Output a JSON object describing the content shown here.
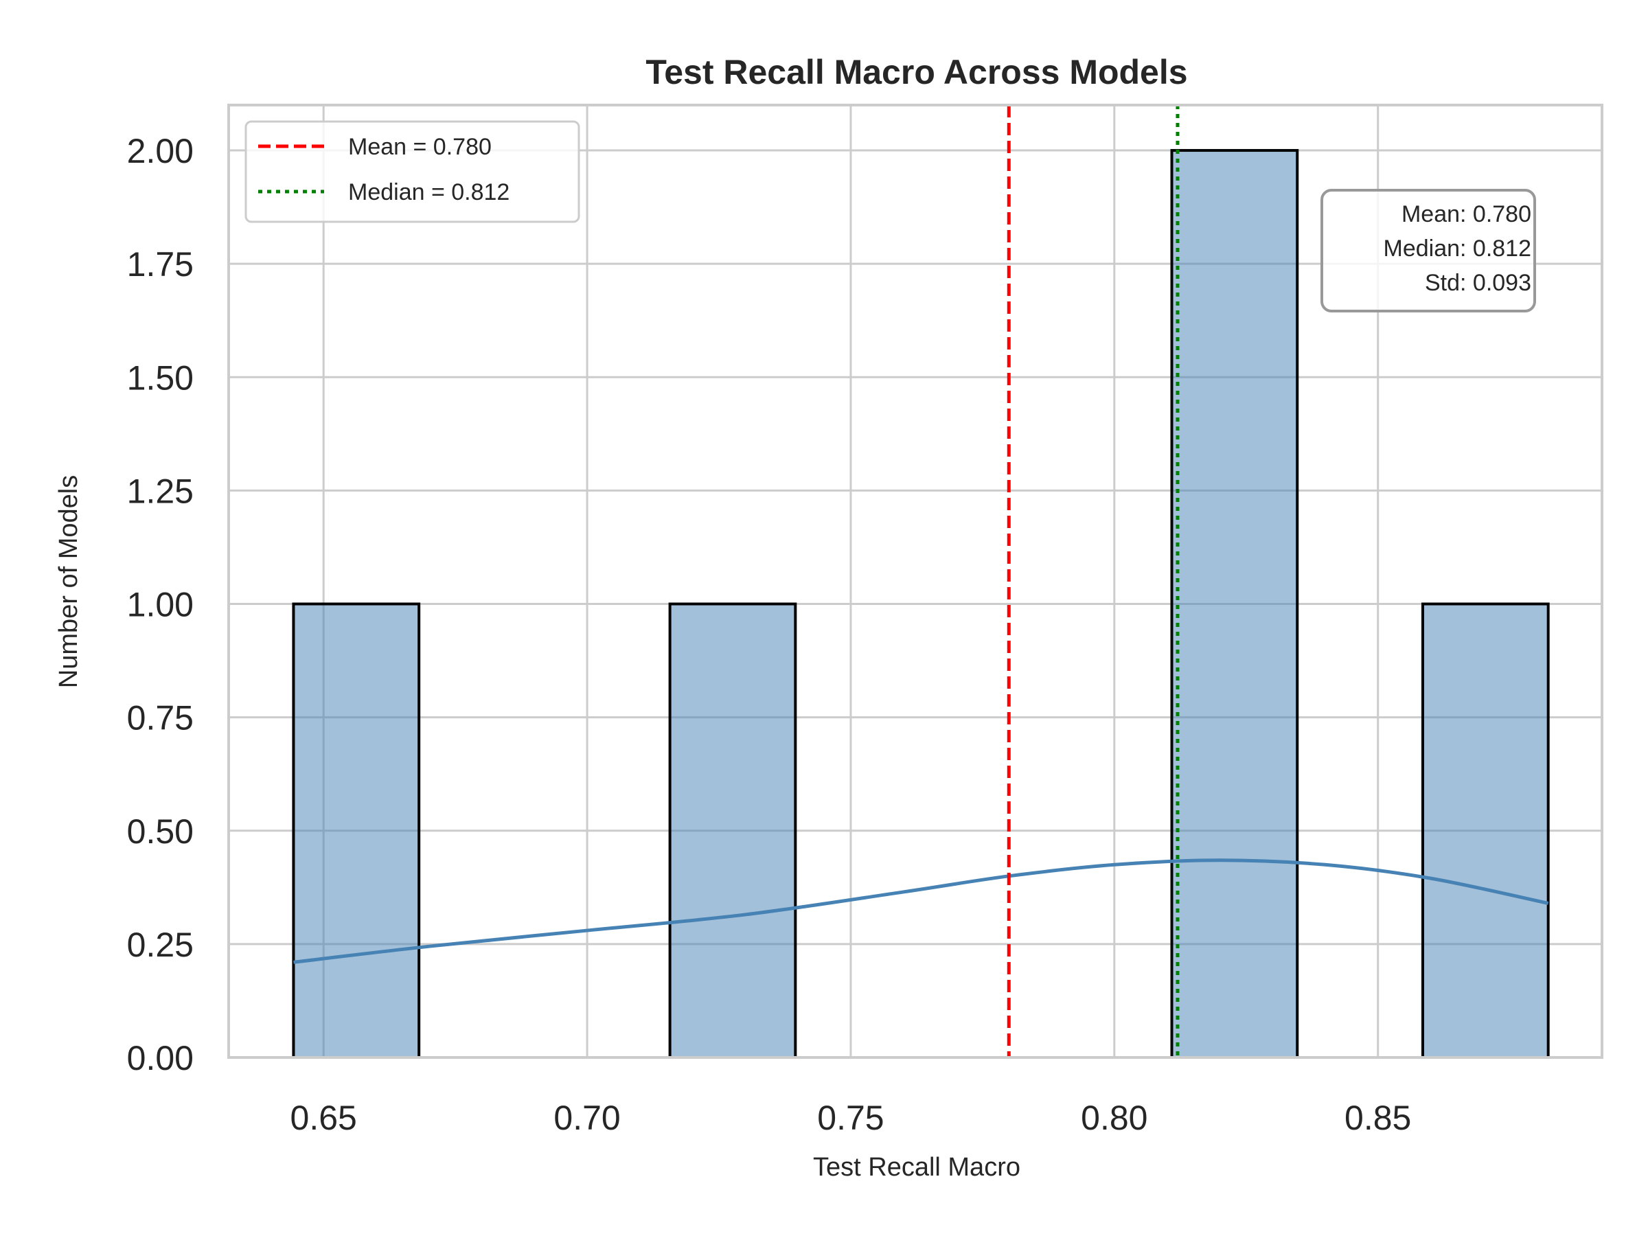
{
  "chart_data": {
    "type": "bar",
    "title": "Test Recall Macro Across Models",
    "xlabel": "Test Recall Macro",
    "ylabel": "Number of Models",
    "xlim": [
      0.632,
      0.8925
    ],
    "ylim": [
      0,
      2.1
    ],
    "xticks": [
      0.65,
      0.7,
      0.75,
      0.8,
      0.85
    ],
    "xtick_labels": [
      "0.65",
      "0.70",
      "0.75",
      "0.80",
      "0.85"
    ],
    "yticks": [
      0,
      0.25,
      0.5,
      0.75,
      1.0,
      1.25,
      1.5,
      1.75,
      2.0
    ],
    "ytick_labels": [
      "0.00",
      "0.25",
      "0.50",
      "0.75",
      "1.00",
      "1.25",
      "1.50",
      "1.75",
      "2.00"
    ],
    "grid": true,
    "bin_width": 0.0238,
    "bins": [
      {
        "start": 0.6443,
        "end": 0.6681,
        "count": 1
      },
      {
        "start": 0.7157,
        "end": 0.7395,
        "count": 1
      },
      {
        "start": 0.8109,
        "end": 0.8347,
        "count": 2
      },
      {
        "start": 0.8585,
        "end": 0.8823,
        "count": 1
      }
    ],
    "kde": {
      "x": [
        0.6443,
        0.67,
        0.7,
        0.73,
        0.76,
        0.78,
        0.8,
        0.82,
        0.84,
        0.86,
        0.8823
      ],
      "y": [
        0.21,
        0.245,
        0.28,
        0.315,
        0.365,
        0.4,
        0.425,
        0.435,
        0.425,
        0.395,
        0.34
      ]
    },
    "reference_lines": [
      {
        "name": "Mean",
        "value": 0.78,
        "label": "Mean = 0.780",
        "color": "#ff0000",
        "style": "dashed"
      },
      {
        "name": "Median",
        "value": 0.812,
        "label": "Median = 0.812",
        "color": "#008000",
        "style": "dotted"
      }
    ],
    "legend": {
      "placement": "top-left"
    },
    "stats_box": {
      "placement": "top-right",
      "lines": [
        "Mean: 0.780",
        "Median: 0.812",
        "Std: 0.093"
      ]
    },
    "colors": {
      "bar_fill": "#4682b4",
      "bar_edge": "#000000",
      "kde": "#4682b4",
      "grid": "#cccccc",
      "axes_edge": "#cccccc"
    }
  }
}
